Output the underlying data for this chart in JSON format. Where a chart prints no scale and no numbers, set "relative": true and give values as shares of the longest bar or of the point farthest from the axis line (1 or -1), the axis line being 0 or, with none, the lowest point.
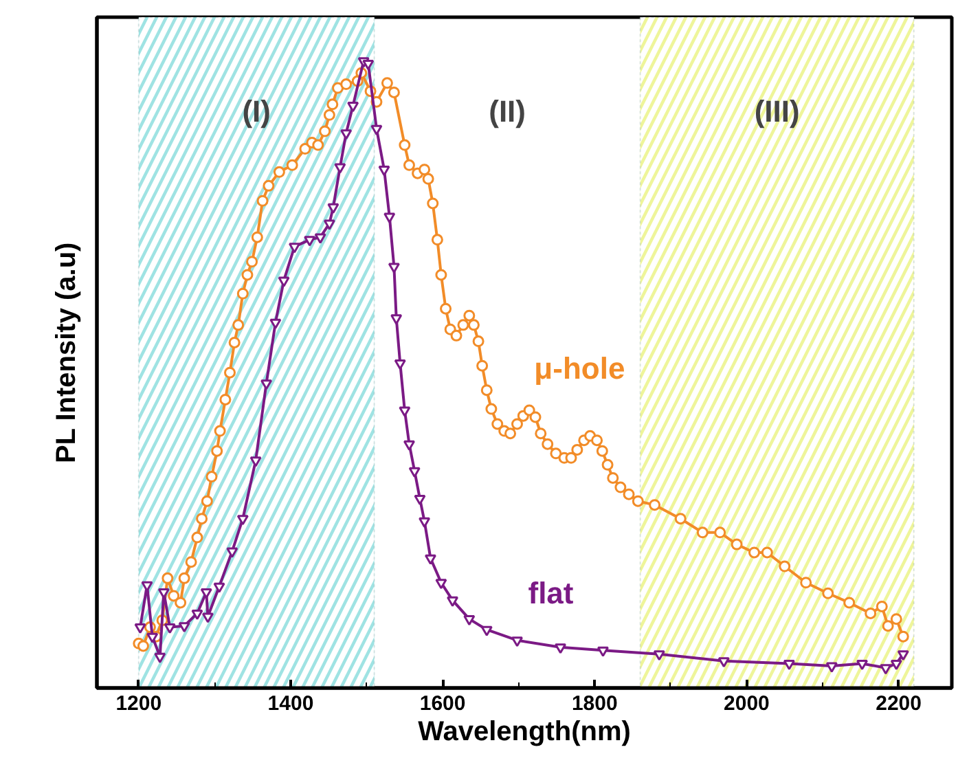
{
  "chart_data": {
    "type": "line",
    "relative": true,
    "xlabel": "Wavelength(nm)",
    "ylabel": "PL Intensity (a.u)",
    "xlim": [
      1145,
      2270
    ],
    "xticks": [
      1200,
      1400,
      1600,
      1800,
      2000,
      2200
    ],
    "tick_labels": "x",
    "grid": false,
    "series": [
      {
        "name": "μ-hole",
        "color": "#f28c28",
        "marker": "circle",
        "x": [
          1200,
          1206,
          1215,
          1223,
          1231,
          1238,
          1246,
          1255,
          1260,
          1269,
          1277,
          1283,
          1290,
          1296,
          1303,
          1307,
          1314,
          1320,
          1326,
          1331,
          1337,
          1343,
          1349,
          1356,
          1363,
          1371,
          1385,
          1402,
          1419,
          1428,
          1436,
          1445,
          1451,
          1455,
          1462,
          1473,
          1488,
          1493,
          1505,
          1513,
          1527,
          1536,
          1550,
          1556,
          1567,
          1576,
          1581,
          1587,
          1593,
          1598,
          1604,
          1610,
          1618,
          1627,
          1635,
          1641,
          1647,
          1652,
          1658,
          1664,
          1672,
          1681,
          1689,
          1698,
          1706,
          1714,
          1722,
          1729,
          1738,
          1749,
          1760,
          1769,
          1777,
          1786,
          1794,
          1803,
          1810,
          1817,
          1824,
          1834,
          1845,
          1857,
          1879,
          1913,
          1942,
          1965,
          1987,
          2010,
          2027,
          2050,
          2078,
          2107,
          2135,
          2163,
          2178,
          2186,
          2197,
          2206
        ],
        "values": [
          0.071,
          0.067,
          0.097,
          0.082,
          0.108,
          0.175,
          0.147,
          0.136,
          0.175,
          0.201,
          0.24,
          0.27,
          0.298,
          0.337,
          0.378,
          0.41,
          0.46,
          0.503,
          0.551,
          0.579,
          0.629,
          0.659,
          0.68,
          0.719,
          0.777,
          0.801,
          0.823,
          0.834,
          0.86,
          0.87,
          0.866,
          0.888,
          0.914,
          0.931,
          0.957,
          0.963,
          0.968,
          0.981,
          0.952,
          0.935,
          0.965,
          0.95,
          0.866,
          0.834,
          0.821,
          0.827,
          0.812,
          0.773,
          0.715,
          0.659,
          0.605,
          0.572,
          0.562,
          0.579,
          0.594,
          0.579,
          0.553,
          0.514,
          0.475,
          0.445,
          0.421,
          0.41,
          0.406,
          0.421,
          0.434,
          0.443,
          0.432,
          0.406,
          0.389,
          0.374,
          0.367,
          0.367,
          0.38,
          0.395,
          0.402,
          0.395,
          0.378,
          0.356,
          0.335,
          0.32,
          0.309,
          0.298,
          0.292,
          0.27,
          0.248,
          0.248,
          0.229,
          0.216,
          0.216,
          0.194,
          0.168,
          0.151,
          0.136,
          0.119,
          0.13,
          0.099,
          0.11,
          0.082
        ]
      },
      {
        "name": "flat",
        "color": "#7b1a85",
        "marker": "triangle",
        "x": [
          1202,
          1211,
          1218,
          1228,
          1233,
          1241,
          1260,
          1277,
          1289,
          1291,
          1306,
          1323,
          1337,
          1354,
          1368,
          1380,
          1391,
          1405,
          1425,
          1439,
          1451,
          1456,
          1465,
          1473,
          1482,
          1496,
          1502,
          1513,
          1523,
          1530,
          1536,
          1539,
          1544,
          1550,
          1556,
          1563,
          1570,
          1576,
          1584,
          1598,
          1613,
          1635,
          1658,
          1698,
          1755,
          1811,
          1885,
          1970,
          2056,
          2112,
          2152,
          2183,
          2197,
          2206
        ],
        "values": [
          0.097,
          0.164,
          0.082,
          0.05,
          0.153,
          0.097,
          0.099,
          0.119,
          0.153,
          0.114,
          0.162,
          0.218,
          0.27,
          0.363,
          0.486,
          0.583,
          0.65,
          0.704,
          0.715,
          0.719,
          0.741,
          0.767,
          0.831,
          0.885,
          0.929,
          1.0,
          0.996,
          0.892,
          0.827,
          0.752,
          0.672,
          0.59,
          0.518,
          0.443,
          0.389,
          0.346,
          0.302,
          0.266,
          0.207,
          0.168,
          0.14,
          0.11,
          0.093,
          0.076,
          0.065,
          0.06,
          0.054,
          0.043,
          0.039,
          0.035,
          0.039,
          0.032,
          0.039,
          0.054
        ]
      }
    ],
    "bands": [
      {
        "axis": "x",
        "from": 1200,
        "to": 1510,
        "label": "(I)",
        "color": "#9fe3e3"
      },
      {
        "axis": "x",
        "from": 1860,
        "to": 2220,
        "label": "(III)",
        "color": "#eef59a"
      }
    ],
    "annotations": [
      "(II)"
    ]
  }
}
